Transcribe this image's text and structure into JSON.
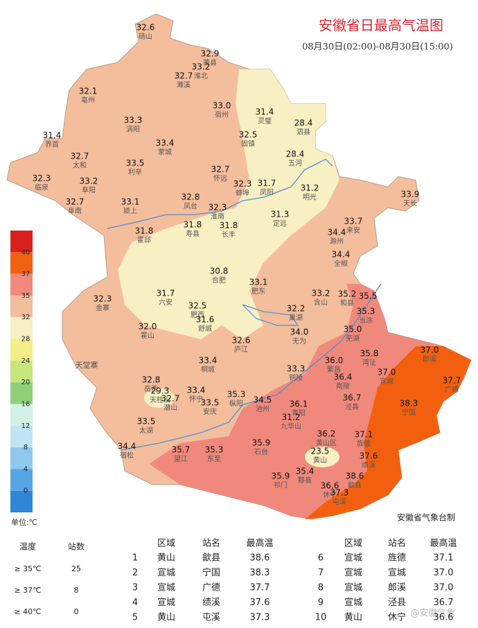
{
  "header": {
    "title": "安徽省日最高气温图",
    "subtitle": "08月30日(02:00)-08月30日(15:00)"
  },
  "legend": {
    "unit": "单位:℃",
    "ticks": [
      40,
      37,
      35,
      32,
      28,
      24,
      20,
      16,
      12,
      8,
      4,
      0
    ],
    "colors": [
      "#d9201e",
      "#f2600f",
      "#f0897c",
      "#f4bd9c",
      "#f8efc2",
      "#f3ee88",
      "#c4e67a",
      "#8fcf78",
      "#d2f0e6",
      "#bfe4f4",
      "#8ec8ee",
      "#57a6e4",
      "#2f86d8"
    ]
  },
  "stations": [
    {
      "value": "32.6",
      "name": "砀山"
    },
    {
      "value": "32.9",
      "name": "萧县"
    },
    {
      "value": "33.2",
      "name": "淮北"
    },
    {
      "value": "32.7",
      "name": "濉溪"
    },
    {
      "value": "32.1",
      "name": "亳州"
    },
    {
      "value": "33.3",
      "name": "涡阳"
    },
    {
      "value": "33.0",
      "name": "宿州"
    },
    {
      "value": "31.4",
      "name": "灵璧"
    },
    {
      "value": "28.4",
      "name": "泗县"
    },
    {
      "value": "31.4",
      "name": "界首"
    },
    {
      "value": "33.4",
      "name": "蒙城"
    },
    {
      "value": "32.5",
      "name": "固镇"
    },
    {
      "value": "32.7",
      "name": "太和"
    },
    {
      "value": "28.4",
      "name": "五河"
    },
    {
      "value": "33.5",
      "name": "利辛"
    },
    {
      "value": "32.7",
      "name": "怀远"
    },
    {
      "value": "32.3",
      "name": "临泉"
    },
    {
      "value": "33.2",
      "name": "阜阳"
    },
    {
      "value": "32.3",
      "name": "蚌埠"
    },
    {
      "value": "31.7",
      "name": "凤阳"
    },
    {
      "value": "31.2",
      "name": "明光"
    },
    {
      "value": "33.9",
      "name": "天长"
    },
    {
      "value": "32.7",
      "name": "阜南"
    },
    {
      "value": "33.1",
      "name": "颍上"
    },
    {
      "value": "32.8",
      "name": "凤台"
    },
    {
      "value": "32.3",
      "name": "淮南"
    },
    {
      "value": "31.3",
      "name": "定远"
    },
    {
      "value": "33.7",
      "name": "来安"
    },
    {
      "value": "31.8",
      "name": "霍邱"
    },
    {
      "value": "31.8",
      "name": "寿县"
    },
    {
      "value": "31.8",
      "name": "长丰"
    },
    {
      "value": "34.4",
      "name": "滁州"
    },
    {
      "value": "34.4",
      "name": "全椒"
    },
    {
      "value": "30.8",
      "name": "合肥"
    },
    {
      "value": "33.1",
      "name": "肥东"
    },
    {
      "value": "31.7",
      "name": "六安"
    },
    {
      "value": "33.2",
      "name": "含山"
    },
    {
      "value": "35.2",
      "name": "和县"
    },
    {
      "value": "35.5"
    },
    {
      "value": "35.3",
      "name": "当涂"
    },
    {
      "value": "32.3",
      "name": "金寨"
    },
    {
      "value": "32.5",
      "name": "肥西"
    },
    {
      "value": "31.6",
      "name": "舒城"
    },
    {
      "value": "32.2",
      "name": "巢湖"
    },
    {
      "value": "32.0",
      "name": "霍山"
    },
    {
      "value": "34.0",
      "name": "无为"
    },
    {
      "value": "35.0",
      "name": "芜湖"
    },
    {
      "value": "32.6",
      "name": "庐江"
    },
    {
      "value": "35.8",
      "name": "湾沚"
    },
    {
      "value": "37.0",
      "name": "郎溪"
    },
    {
      "value": "36.0",
      "name": "繁昌"
    },
    {
      "value": "33.4",
      "name": "桐城"
    },
    {
      "value": "33.3",
      "name": "铜陵"
    },
    {
      "value": "37.0",
      "name": "宣城"
    },
    {
      "value": "36.4",
      "name": "南陵"
    },
    {
      "value": "37.7",
      "name": "广德"
    },
    {
      "value": "32.8",
      "name": "岳西"
    },
    {
      "value": "29.3",
      "name": "天柱山"
    },
    {
      "value": "33.4",
      "name": "怀宁"
    },
    {
      "value": "32.7",
      "name": "潜山"
    },
    {
      "value": "35.3",
      "name": "枞阳"
    },
    {
      "value": "34.5",
      "name": "池州"
    },
    {
      "value": "36.7",
      "name": "泾县"
    },
    {
      "value": "38.3",
      "name": "宁国"
    },
    {
      "value": "33.5",
      "name": "安庆"
    },
    {
      "value": "36.1",
      "name": "青阳"
    },
    {
      "value": "31.2",
      "name": "九华山"
    },
    {
      "value": "33.5",
      "name": "太湖"
    },
    {
      "value": "36.2",
      "name": "黄山区"
    },
    {
      "value": "37.1",
      "name": "旌德"
    },
    {
      "value": "34.4",
      "name": "宿松"
    },
    {
      "value": "35.7",
      "name": "望江"
    },
    {
      "value": "35.3",
      "name": "东至"
    },
    {
      "value": "35.9",
      "name": "石台"
    },
    {
      "value": "23.5",
      "name": "黄山"
    },
    {
      "value": "37.6",
      "name": "绩溪"
    },
    {
      "value": "38.6",
      "name": "歙县"
    },
    {
      "value": "35.9",
      "name": "祁门"
    },
    {
      "value": "35.4",
      "name": "黟县"
    },
    {
      "value": "36.6",
      "name": "休宁"
    },
    {
      "value": "37.3",
      "name": "屯溪"
    }
  ],
  "place": "天堂寨",
  "agency": "安徽省气象台制",
  "stats": {
    "headers": [
      "温度",
      "站数"
    ],
    "rows": [
      [
        "≥ 35℃",
        "25"
      ],
      [
        "≥ 37℃",
        "8"
      ],
      [
        "≥ 40℃",
        "0"
      ]
    ]
  },
  "ranking": {
    "headers": [
      "区域",
      "站名",
      "最高温"
    ],
    "rows": [
      [
        "1",
        "黄山",
        "歙县",
        "38.6"
      ],
      [
        "2",
        "宣城",
        "宁国",
        "38.3"
      ],
      [
        "3",
        "宣城",
        "广德",
        "37.7"
      ],
      [
        "4",
        "宣城",
        "绩溪",
        "37.6"
      ],
      [
        "5",
        "黄山",
        "屯溪",
        "37.3"
      ],
      [
        "6",
        "宣城",
        "旌德",
        "37.1"
      ],
      [
        "7",
        "宣城",
        "宣城",
        "37.0"
      ],
      [
        "8",
        "宣城",
        "郎溪",
        "37.0"
      ],
      [
        "9",
        "宣城",
        "泾县",
        "36.7"
      ],
      [
        "10",
        "黄山",
        "休宁",
        "36.6"
      ]
    ]
  },
  "watermark": "@安徽气象"
}
